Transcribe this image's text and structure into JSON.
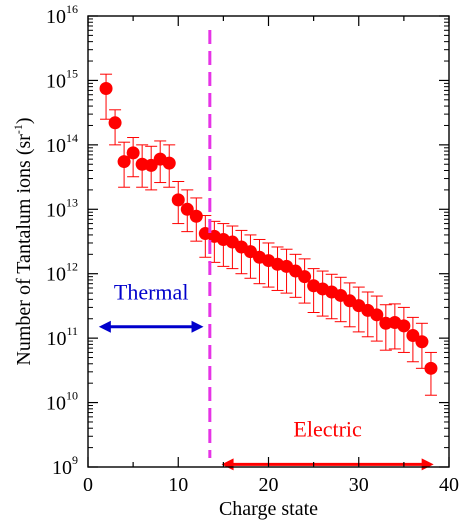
{
  "chart_data": {
    "type": "scatter",
    "xlabel": "Charge state",
    "ylabel": "Number of Tantalum ions (sr",
    "ylabel_sup": "-1",
    "ylabel_close": ")",
    "xlim": [
      0,
      40
    ],
    "ylim_log10": [
      9,
      16
    ],
    "y_scale": "log",
    "x_ticks": [
      "0",
      "10",
      "20",
      "30",
      "40"
    ],
    "y_tick_base": "10",
    "y_tick_exponents": [
      "9",
      "10",
      "11",
      "12",
      "13",
      "14",
      "15",
      "16"
    ],
    "grid": false,
    "legend": "none",
    "colors": {
      "points": "#ff0000",
      "thermal": "#0000cc",
      "electric": "#ff0000",
      "divider": "#e633e6"
    },
    "divider_x": 13.5,
    "points": [
      {
        "x": 2,
        "y": 750000000000000.0,
        "lo": 250000000000000.0,
        "hi": 1250000000000000.0
      },
      {
        "x": 3,
        "y": 220000000000000.0,
        "lo": 100000000000000.0,
        "hi": 350000000000000.0
      },
      {
        "x": 4,
        "y": 55000000000000.0,
        "lo": 22000000000000.0,
        "hi": 110000000000000.0
      },
      {
        "x": 5,
        "y": 75000000000000.0,
        "lo": 32000000000000.0,
        "hi": 130000000000000.0
      },
      {
        "x": 6,
        "y": 50000000000000.0,
        "lo": 22000000000000.0,
        "hi": 100000000000000.0
      },
      {
        "x": 7,
        "y": 48000000000000.0,
        "lo": 20000000000000.0,
        "hi": 95000000000000.0
      },
      {
        "x": 8,
        "y": 60000000000000.0,
        "lo": 26000000000000.0,
        "hi": 115000000000000.0
      },
      {
        "x": 9,
        "y": 52000000000000.0,
        "lo": 22000000000000.0,
        "hi": 100000000000000.0
      },
      {
        "x": 10,
        "y": 14000000000000.0,
        "lo": 6000000000000.0,
        "hi": 27000000000000.0
      },
      {
        "x": 11,
        "y": 10000000000000.0,
        "lo": 4500000000000.0,
        "hi": 20000000000000.0
      },
      {
        "x": 12,
        "y": 7800000000000.0,
        "lo": 3200000000000.0,
        "hi": 15000000000000.0
      },
      {
        "x": 13,
        "y": 4200000000000.0,
        "lo": 1800000000000.0,
        "hi": 8000000000000.0
      },
      {
        "x": 14,
        "y": 3800000000000.0,
        "lo": 1500000000000.0,
        "hi": 6500000000000.0
      },
      {
        "x": 15,
        "y": 3400000000000.0,
        "lo": 1300000000000.0,
        "hi": 6000000000000.0
      },
      {
        "x": 16,
        "y": 3100000000000.0,
        "lo": 1200000000000.0,
        "hi": 5500000000000.0
      },
      {
        "x": 17,
        "y": 2600000000000.0,
        "lo": 1000000000000.0,
        "hi": 4700000000000.0
      },
      {
        "x": 18,
        "y": 2200000000000.0,
        "lo": 850000000000.0,
        "hi": 4000000000000.0
      },
      {
        "x": 19,
        "y": 1800000000000.0,
        "lo": 700000000000.0,
        "hi": 3400000000000.0
      },
      {
        "x": 20,
        "y": 1600000000000.0,
        "lo": 620000000000.0,
        "hi": 3000000000000.0
      },
      {
        "x": 21,
        "y": 1400000000000.0,
        "lo": 550000000000.0,
        "hi": 2600000000000.0
      },
      {
        "x": 22,
        "y": 1300000000000.0,
        "lo": 500000000000.0,
        "hi": 2400000000000.0
      },
      {
        "x": 23,
        "y": 1100000000000.0,
        "lo": 430000000000.0,
        "hi": 2000000000000.0
      },
      {
        "x": 24,
        "y": 900000000000.0,
        "lo": 350000000000.0,
        "hi": 1700000000000.0
      },
      {
        "x": 25,
        "y": 650000000000.0,
        "lo": 250000000000.0,
        "hi": 1200000000000.0
      },
      {
        "x": 26,
        "y": 580000000000.0,
        "lo": 220000000000.0,
        "hi": 1100000000000.0
      },
      {
        "x": 27,
        "y": 520000000000.0,
        "lo": 200000000000.0,
        "hi": 980000000000.0
      },
      {
        "x": 28,
        "y": 460000000000.0,
        "lo": 180000000000.0,
        "hi": 880000000000.0
      },
      {
        "x": 29,
        "y": 380000000000.0,
        "lo": 150000000000.0,
        "hi": 720000000000.0
      },
      {
        "x": 30,
        "y": 320000000000.0,
        "lo": 125000000000.0,
        "hi": 620000000000.0
      },
      {
        "x": 31,
        "y": 270000000000.0,
        "lo": 105000000000.0,
        "hi": 520000000000.0
      },
      {
        "x": 32,
        "y": 230000000000.0,
        "lo": 90000000000.0,
        "hi": 450000000000.0
      },
      {
        "x": 33,
        "y": 170000000000.0,
        "lo": 65000000000.0,
        "hi": 330000000000.0
      },
      {
        "x": 34,
        "y": 175000000000.0,
        "lo": 68000000000.0,
        "hi": 340000000000.0
      },
      {
        "x": 35,
        "y": 155000000000.0,
        "lo": 60000000000.0,
        "hi": 300000000000.0
      },
      {
        "x": 36,
        "y": 110000000000.0,
        "lo": 43000000000.0,
        "hi": 210000000000.0
      },
      {
        "x": 37,
        "y": 88000000000.0,
        "lo": 34000000000.0,
        "hi": 170000000000.0
      },
      {
        "x": 38,
        "y": 34000000000.0,
        "lo": 13000000000.0,
        "hi": 60000000000.0
      }
    ],
    "annotations": {
      "thermal": {
        "label": "Thermal",
        "x_from": 1.2,
        "x_to": 12.8,
        "y_arrow": 150000000000.0,
        "y_label": 400000000000.0
      },
      "electric": {
        "label": "Electric",
        "x_from": 14.8,
        "x_to": 38.3,
        "y_arrow": 1100000000.0,
        "y_label": 3000000000.0
      }
    }
  }
}
